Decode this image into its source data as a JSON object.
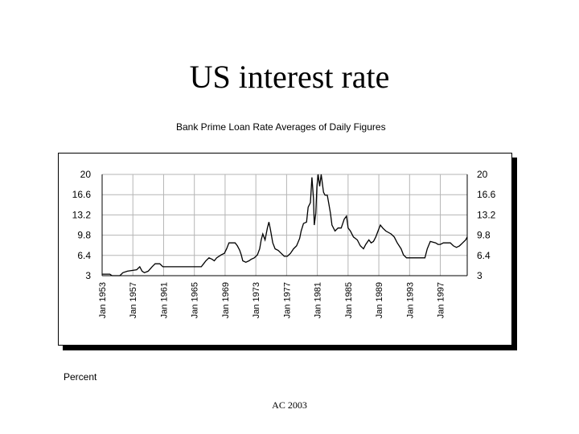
{
  "slide": {
    "title": "US interest rate",
    "footer": "AC 2003"
  },
  "chart_data": {
    "type": "line",
    "title": "Bank Prime Loan Rate  Averages of Daily Figures",
    "ylabel": "Percent",
    "xlabel": "",
    "ylim": [
      3,
      20
    ],
    "xlim": [
      1953,
      2000.5
    ],
    "y_ticks": [
      {
        "value": 20,
        "label": "20"
      },
      {
        "value": 16.6,
        "label": "16.6"
      },
      {
        "value": 13.2,
        "label": "13.2"
      },
      {
        "value": 9.8,
        "label": "9.8"
      },
      {
        "value": 6.4,
        "label": "6.4"
      },
      {
        "value": 3,
        "label": "3"
      }
    ],
    "x_ticks": [
      {
        "value": 1953,
        "label": "Jan 1953"
      },
      {
        "value": 1957,
        "label": "Jan 1957"
      },
      {
        "value": 1961,
        "label": "Jan 1961"
      },
      {
        "value": 1965,
        "label": "Jan 1965"
      },
      {
        "value": 1969,
        "label": "Jan 1969"
      },
      {
        "value": 1973,
        "label": "Jan 1973"
      },
      {
        "value": 1977,
        "label": "Jan 1977"
      },
      {
        "value": 1981,
        "label": "Jan 1981"
      },
      {
        "value": 1985,
        "label": "Jan 1985"
      },
      {
        "value": 1989,
        "label": "Jan 1989"
      },
      {
        "value": 1993,
        "label": "Jan 1993"
      },
      {
        "value": 1997,
        "label": "Jan 1997"
      }
    ],
    "grid": true,
    "series": [
      {
        "color": "#000000",
        "points": [
          [
            1953.0,
            3.25
          ],
          [
            1954.0,
            3.25
          ],
          [
            1954.3,
            3.0
          ],
          [
            1955.3,
            3.0
          ],
          [
            1955.7,
            3.5
          ],
          [
            1956.3,
            3.75
          ],
          [
            1957.5,
            4.0
          ],
          [
            1957.9,
            4.5
          ],
          [
            1958.2,
            3.75
          ],
          [
            1958.5,
            3.5
          ],
          [
            1959.0,
            3.75
          ],
          [
            1959.5,
            4.5
          ],
          [
            1959.9,
            5.0
          ],
          [
            1960.5,
            5.0
          ],
          [
            1960.9,
            4.5
          ],
          [
            1965.9,
            4.5
          ],
          [
            1966.2,
            5.0
          ],
          [
            1966.5,
            5.5
          ],
          [
            1966.9,
            6.0
          ],
          [
            1967.3,
            5.75
          ],
          [
            1967.6,
            5.5
          ],
          [
            1967.9,
            6.0
          ],
          [
            1968.5,
            6.5
          ],
          [
            1968.9,
            6.75
          ],
          [
            1969.2,
            7.5
          ],
          [
            1969.5,
            8.5
          ],
          [
            1970.3,
            8.5
          ],
          [
            1970.6,
            8.0
          ],
          [
            1970.9,
            7.25
          ],
          [
            1971.1,
            6.5
          ],
          [
            1971.3,
            5.5
          ],
          [
            1971.7,
            5.25
          ],
          [
            1972.1,
            5.5
          ],
          [
            1972.4,
            5.75
          ],
          [
            1972.8,
            6.0
          ],
          [
            1973.2,
            6.5
          ],
          [
            1973.5,
            7.5
          ],
          [
            1973.7,
            9.0
          ],
          [
            1973.9,
            10.0
          ],
          [
            1974.2,
            9.0
          ],
          [
            1974.5,
            11.0
          ],
          [
            1974.7,
            12.0
          ],
          [
            1974.9,
            10.75
          ],
          [
            1975.2,
            8.5
          ],
          [
            1975.5,
            7.5
          ],
          [
            1975.9,
            7.25
          ],
          [
            1976.3,
            6.75
          ],
          [
            1976.7,
            6.25
          ],
          [
            1977.1,
            6.25
          ],
          [
            1977.5,
            6.75
          ],
          [
            1977.9,
            7.5
          ],
          [
            1978.3,
            8.0
          ],
          [
            1978.7,
            9.25
          ],
          [
            1978.9,
            10.5
          ],
          [
            1979.2,
            11.75
          ],
          [
            1979.6,
            12.0
          ],
          [
            1979.8,
            14.5
          ],
          [
            1980.1,
            15.25
          ],
          [
            1980.3,
            19.5
          ],
          [
            1980.5,
            16.0
          ],
          [
            1980.6,
            11.5
          ],
          [
            1980.8,
            13.5
          ],
          [
            1980.95,
            18.0
          ],
          [
            1981.1,
            20.5
          ],
          [
            1981.3,
            18.0
          ],
          [
            1981.5,
            20.5
          ],
          [
            1981.8,
            17.0
          ],
          [
            1982.0,
            16.5
          ],
          [
            1982.3,
            16.5
          ],
          [
            1982.5,
            15.0
          ],
          [
            1982.7,
            13.5
          ],
          [
            1982.9,
            11.5
          ],
          [
            1983.3,
            10.5
          ],
          [
            1983.7,
            11.0
          ],
          [
            1984.1,
            11.0
          ],
          [
            1984.5,
            12.5
          ],
          [
            1984.8,
            13.0
          ],
          [
            1985.0,
            11.0
          ],
          [
            1985.3,
            10.5
          ],
          [
            1985.7,
            9.5
          ],
          [
            1986.2,
            9.0
          ],
          [
            1986.6,
            8.0
          ],
          [
            1987.0,
            7.5
          ],
          [
            1987.3,
            8.25
          ],
          [
            1987.7,
            9.0
          ],
          [
            1988.0,
            8.5
          ],
          [
            1988.3,
            8.75
          ],
          [
            1988.6,
            9.5
          ],
          [
            1988.9,
            10.5
          ],
          [
            1989.2,
            11.5
          ],
          [
            1989.5,
            11.0
          ],
          [
            1989.9,
            10.5
          ],
          [
            1990.6,
            10.0
          ],
          [
            1991.0,
            9.5
          ],
          [
            1991.4,
            8.5
          ],
          [
            1991.9,
            7.5
          ],
          [
            1992.2,
            6.5
          ],
          [
            1992.6,
            6.0
          ],
          [
            1995.0,
            6.0
          ],
          [
            1995.3,
            7.5
          ],
          [
            1995.7,
            8.75
          ],
          [
            1996.4,
            8.5
          ],
          [
            1996.7,
            8.25
          ],
          [
            1997.0,
            8.25
          ],
          [
            1997.4,
            8.5
          ],
          [
            1998.3,
            8.5
          ],
          [
            1998.7,
            8.0
          ],
          [
            1999.1,
            7.75
          ],
          [
            1999.5,
            8.0
          ],
          [
            1999.9,
            8.5
          ],
          [
            2000.3,
            9.0
          ],
          [
            2000.5,
            9.5
          ]
        ]
      }
    ],
    "legend": "none"
  }
}
